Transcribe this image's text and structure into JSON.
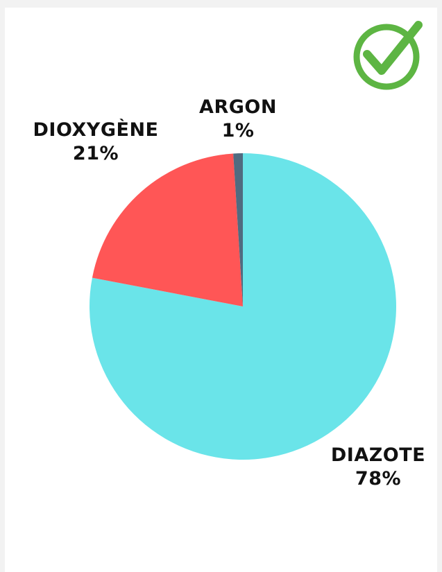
{
  "chart_data": {
    "type": "pie",
    "slices": [
      {
        "name": "DIAZOTE",
        "value": 78,
        "value_label": "78%",
        "color": "#6ae4e9"
      },
      {
        "name": "DIOXYGÈNE",
        "value": 21,
        "value_label": "21%",
        "color": "#ff5656"
      },
      {
        "name": "ARGON",
        "value": 1,
        "value_label": "1%",
        "color": "#506b80"
      }
    ]
  },
  "badge": {
    "icon": "check-circle-icon",
    "color": "#5db543"
  }
}
